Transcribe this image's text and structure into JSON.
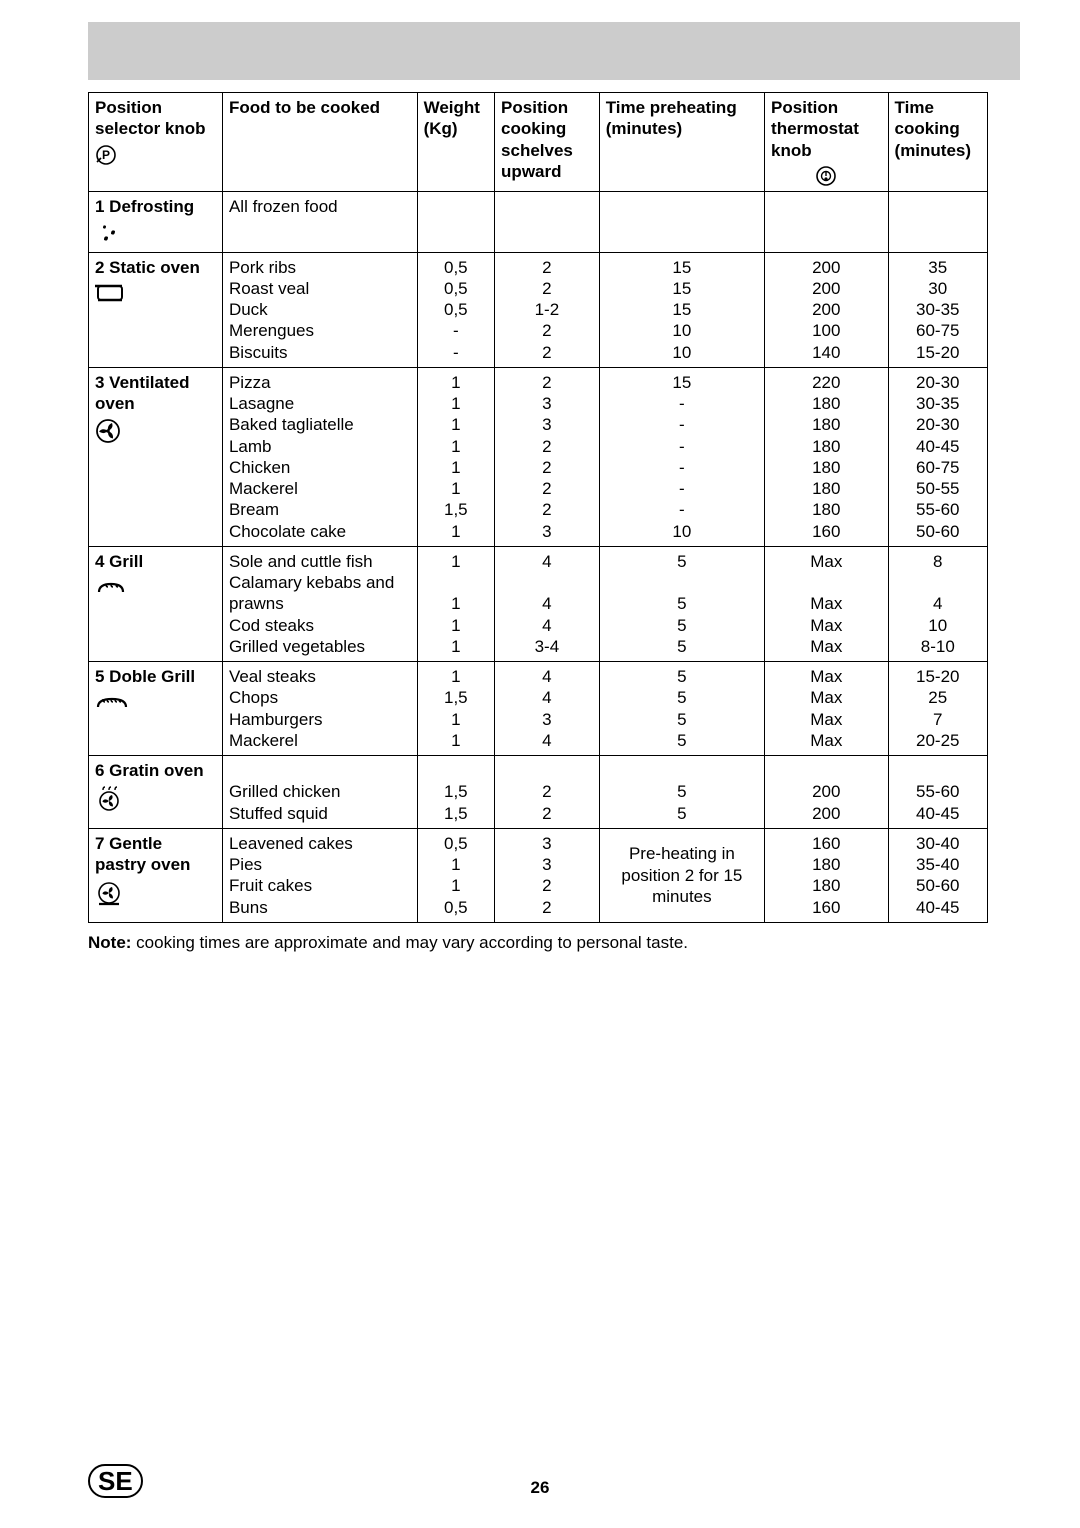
{
  "table": {
    "headers": {
      "position_selector": "Position\nselector knob",
      "food": "Food to be cooked",
      "weight": "Weight\n(Kg)",
      "shelf": "Position\ncooking\nschelves\nupward",
      "preheat": "Time preheating\n(minutes)",
      "thermostat": "Position\nthermostat\nknob",
      "cook_time": "Time\ncooking\n(minutes)"
    },
    "sections": [
      {
        "label": "1 Defrosting",
        "icon": "defrost-icon",
        "rows": [
          {
            "food": "All frozen food",
            "weight": "",
            "shelf": "",
            "preheat": "",
            "thermostat": "",
            "time": ""
          }
        ]
      },
      {
        "label": "2 Static oven",
        "icon": "static-oven-icon",
        "rows": [
          {
            "food": "Pork ribs",
            "weight": "0,5",
            "shelf": "2",
            "preheat": "15",
            "thermostat": "200",
            "time": "35"
          },
          {
            "food": "Roast veal",
            "weight": "0,5",
            "shelf": "2",
            "preheat": "15",
            "thermostat": "200",
            "time": "30"
          },
          {
            "food": "Duck",
            "weight": "0,5",
            "shelf": "1-2",
            "preheat": "15",
            "thermostat": "200",
            "time": "30-35"
          },
          {
            "food": "Merengues",
            "weight": "-",
            "shelf": "2",
            "preheat": "10",
            "thermostat": "100",
            "time": "60-75"
          },
          {
            "food": "Biscuits",
            "weight": "-",
            "shelf": "2",
            "preheat": "10",
            "thermostat": "140",
            "time": "15-20"
          }
        ]
      },
      {
        "label": "3 Ventilated\noven",
        "icon": "fan-icon",
        "rows": [
          {
            "food": "Pizza",
            "weight": "1",
            "shelf": "2",
            "preheat": "15",
            "thermostat": "220",
            "time": "20-30"
          },
          {
            "food": "Lasagne",
            "weight": "1",
            "shelf": "3",
            "preheat": "-",
            "thermostat": "180",
            "time": "30-35"
          },
          {
            "food": "Baked tagliatelle",
            "weight": "1",
            "shelf": "3",
            "preheat": "-",
            "thermostat": "180",
            "time": "20-30"
          },
          {
            "food": "Lamb",
            "weight": "1",
            "shelf": "2",
            "preheat": "-",
            "thermostat": "180",
            "time": "40-45"
          },
          {
            "food": "Chicken",
            "weight": "1",
            "shelf": "2",
            "preheat": "-",
            "thermostat": "180",
            "time": "60-75"
          },
          {
            "food": "Mackerel",
            "weight": "1",
            "shelf": "2",
            "preheat": "-",
            "thermostat": "180",
            "time": "50-55"
          },
          {
            "food": "Bream",
            "weight": "1,5",
            "shelf": "2",
            "preheat": "-",
            "thermostat": "180",
            "time": "55-60"
          },
          {
            "food": "Chocolate cake",
            "weight": "1",
            "shelf": "3",
            "preheat": "10",
            "thermostat": "160",
            "time": "50-60"
          }
        ]
      },
      {
        "label": "4 Grill",
        "icon": "grill-icon",
        "rows": [
          {
            "food": "Sole and cuttle fish",
            "weight": "1",
            "shelf": "4",
            "preheat": "5",
            "thermostat": "Max",
            "time": "8"
          },
          {
            "food": "Calamary kebabs and prawns",
            "weight": "1",
            "shelf": "4",
            "preheat": "5",
            "thermostat": "Max",
            "time": "4"
          },
          {
            "food": "Cod steaks",
            "weight": "1",
            "shelf": "4",
            "preheat": "5",
            "thermostat": "Max",
            "time": "10"
          },
          {
            "food": "Grilled vegetables",
            "weight": "1",
            "shelf": "3-4",
            "preheat": "5",
            "thermostat": "Max",
            "time": "8-10"
          }
        ]
      },
      {
        "label": "5 Doble Grill",
        "icon": "double-grill-icon",
        "rows": [
          {
            "food": "Veal steaks",
            "weight": "1",
            "shelf": "4",
            "preheat": "5",
            "thermostat": "Max",
            "time": "15-20"
          },
          {
            "food": "Chops",
            "weight": "1,5",
            "shelf": "4",
            "preheat": "5",
            "thermostat": "Max",
            "time": "25"
          },
          {
            "food": "Hamburgers",
            "weight": "1",
            "shelf": "3",
            "preheat": "5",
            "thermostat": "Max",
            "time": "7"
          },
          {
            "food": "Mackerel",
            "weight": "1",
            "shelf": "4",
            "preheat": "5",
            "thermostat": "Max",
            "time": "20-25"
          }
        ]
      },
      {
        "label": "6 Gratin oven",
        "icon": "gratin-icon",
        "rows": [
          {
            "food": "Grilled chicken",
            "weight": "1,5",
            "shelf": "2",
            "preheat": "5",
            "thermostat": "200",
            "time": "55-60"
          },
          {
            "food": "Stuffed squid",
            "weight": "1,5",
            "shelf": "2",
            "preheat": "5",
            "thermostat": "200",
            "time": "40-45"
          }
        ],
        "lead_blank": true
      },
      {
        "label": "7 Gentle\npastry oven",
        "icon": "pastry-icon",
        "preheat_merged": "Pre-heating in position 2 for 15 minutes",
        "rows": [
          {
            "food": "Leavened cakes",
            "weight": "0,5",
            "shelf": "3",
            "thermostat": "160",
            "time": "30-40"
          },
          {
            "food": "Pies",
            "weight": "1",
            "shelf": "3",
            "thermostat": "180",
            "time": "35-40"
          },
          {
            "food": "Fruit cakes",
            "weight": "1",
            "shelf": "2",
            "thermostat": "180",
            "time": "50-60"
          },
          {
            "food": "Buns",
            "weight": "0,5",
            "shelf": "2",
            "thermostat": "160",
            "time": "40-45"
          }
        ]
      }
    ]
  },
  "note_label": "Note:",
  "note_text": " cooking times are approximate and may vary according to personal taste.",
  "footer_badge": "SE",
  "page_number": "26"
}
